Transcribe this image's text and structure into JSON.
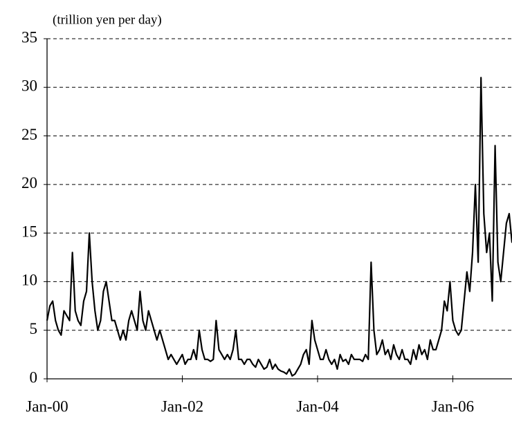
{
  "chart_data": {
    "type": "line",
    "y_label": "(trillion yen per day)",
    "categories": [
      "Jan-00",
      null,
      null,
      null,
      null,
      null,
      null,
      null,
      null,
      null,
      null,
      null,
      null,
      null,
      null,
      null,
      null,
      null,
      null,
      null,
      null,
      null,
      null,
      null,
      null,
      null,
      null,
      null,
      null,
      null,
      null,
      null,
      null,
      null,
      null,
      null,
      null,
      null,
      null,
      null,
      null,
      null,
      null,
      null,
      null,
      null,
      null,
      null,
      "Jan-02",
      null,
      null,
      null,
      null,
      null,
      null,
      null,
      null,
      null,
      null,
      null,
      null,
      null,
      null,
      null,
      null,
      null,
      null,
      null,
      null,
      null,
      null,
      null,
      null,
      null,
      null,
      null,
      null,
      null,
      null,
      null,
      null,
      null,
      null,
      null,
      null,
      null,
      null,
      null,
      null,
      null,
      null,
      null,
      null,
      null,
      null,
      null,
      "Jan-04",
      null,
      null,
      null,
      null,
      null,
      null,
      null,
      null,
      null,
      null,
      null,
      null,
      null,
      null,
      null,
      null,
      null,
      null,
      null,
      null,
      null,
      null,
      null,
      null,
      null,
      null,
      null,
      null,
      null,
      null,
      null,
      null,
      null,
      null,
      null,
      null,
      null,
      null,
      null,
      null,
      null,
      null,
      null,
      null,
      null,
      null,
      null,
      "Jan-06",
      null,
      null,
      null,
      null,
      null,
      null,
      null,
      null,
      null,
      null,
      null,
      null,
      null,
      null,
      null,
      null,
      null,
      null,
      null,
      null,
      null
    ],
    "values": [
      6,
      7.5,
      8,
      6,
      5,
      4.5,
      7,
      6.5,
      6,
      13,
      7,
      6,
      5.5,
      8,
      9,
      15,
      10,
      7,
      5,
      6,
      9,
      10,
      8,
      6,
      6,
      5,
      4,
      5,
      4,
      6,
      7,
      6,
      5,
      9,
      6,
      5,
      7,
      6,
      5,
      4,
      5,
      4,
      3,
      2,
      2.5,
      2,
      1.5,
      2,
      2.5,
      1.5,
      2,
      2,
      3,
      2,
      5,
      3,
      2,
      2,
      1.8,
      2,
      6,
      3,
      2.5,
      2,
      2.5,
      2,
      3,
      5,
      2,
      2,
      1.5,
      2,
      2,
      1.5,
      1.2,
      2,
      1.5,
      1,
      1.2,
      2,
      1,
      1.5,
      1,
      0.8,
      0.7,
      0.5,
      1,
      0.3,
      0.5,
      1,
      1.5,
      2.5,
      3,
      1.5,
      6,
      4,
      3,
      2,
      2,
      3,
      2,
      1.5,
      2,
      1,
      2.5,
      1.8,
      2,
      1.5,
      2.5,
      2,
      2,
      2,
      1.8,
      2.5,
      2,
      12,
      5,
      2.5,
      3,
      4,
      2.5,
      3,
      2,
      3.5,
      2.5,
      2,
      3,
      2,
      2,
      1.5,
      3,
      2,
      3.5,
      2.5,
      3,
      2,
      4,
      3,
      3,
      4,
      5,
      8,
      7,
      10,
      6,
      5,
      4.5,
      5,
      8,
      11,
      9,
      13,
      20,
      12,
      31,
      17,
      13,
      15,
      8,
      24,
      12,
      10,
      13,
      16,
      17,
      14
    ],
    "color": "#000000",
    "ylim": [
      0,
      35
    ],
    "yticks": [
      0,
      5,
      10,
      15,
      20,
      25,
      30,
      35
    ],
    "grid": true
  }
}
